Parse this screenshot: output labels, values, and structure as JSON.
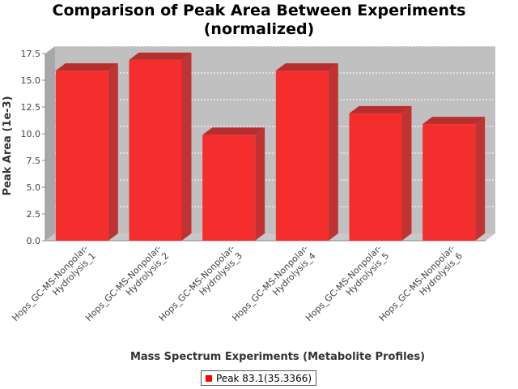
{
  "chart_data": {
    "type": "bar",
    "title": [
      "Comparison of Peak Area Between Experiments",
      "(normalized)"
    ],
    "xlabel": "Mass Spectrum Experiments (Metabolite Profiles)",
    "ylabel": "Peak Area (1e-3)",
    "categories": [
      [
        "Hops_GC-MS-Nonpolar-",
        "Hydrolysis_1"
      ],
      [
        "Hops_GC-MS-Nonpolar-",
        "Hydrolysis_2"
      ],
      [
        "Hops_GC-MS-Nonpolar-",
        "Hydrolysis_3"
      ],
      [
        "Hops_GC-MS-Nonpolar-",
        "Hydrolysis_4"
      ],
      [
        "Hops_GC-MS-Nonpolar-",
        "Hydrolysis_5"
      ],
      [
        "Hops_GC-MS-Nonpolar-",
        "Hydrolysis_6"
      ]
    ],
    "series": [
      {
        "name": "Peak 83.1(35.3366)",
        "values": [
          15.9,
          16.9,
          9.9,
          15.9,
          11.9,
          10.9
        ],
        "color": "#ff0000"
      }
    ],
    "ylim": [
      0,
      17.5
    ],
    "yticks": [
      "0.0",
      "2.5",
      "5.0",
      "7.5",
      "10.0",
      "12.5",
      "15.0",
      "17.5"
    ],
    "grid": true,
    "legend_position": "bottom",
    "style": "3d-bar"
  }
}
